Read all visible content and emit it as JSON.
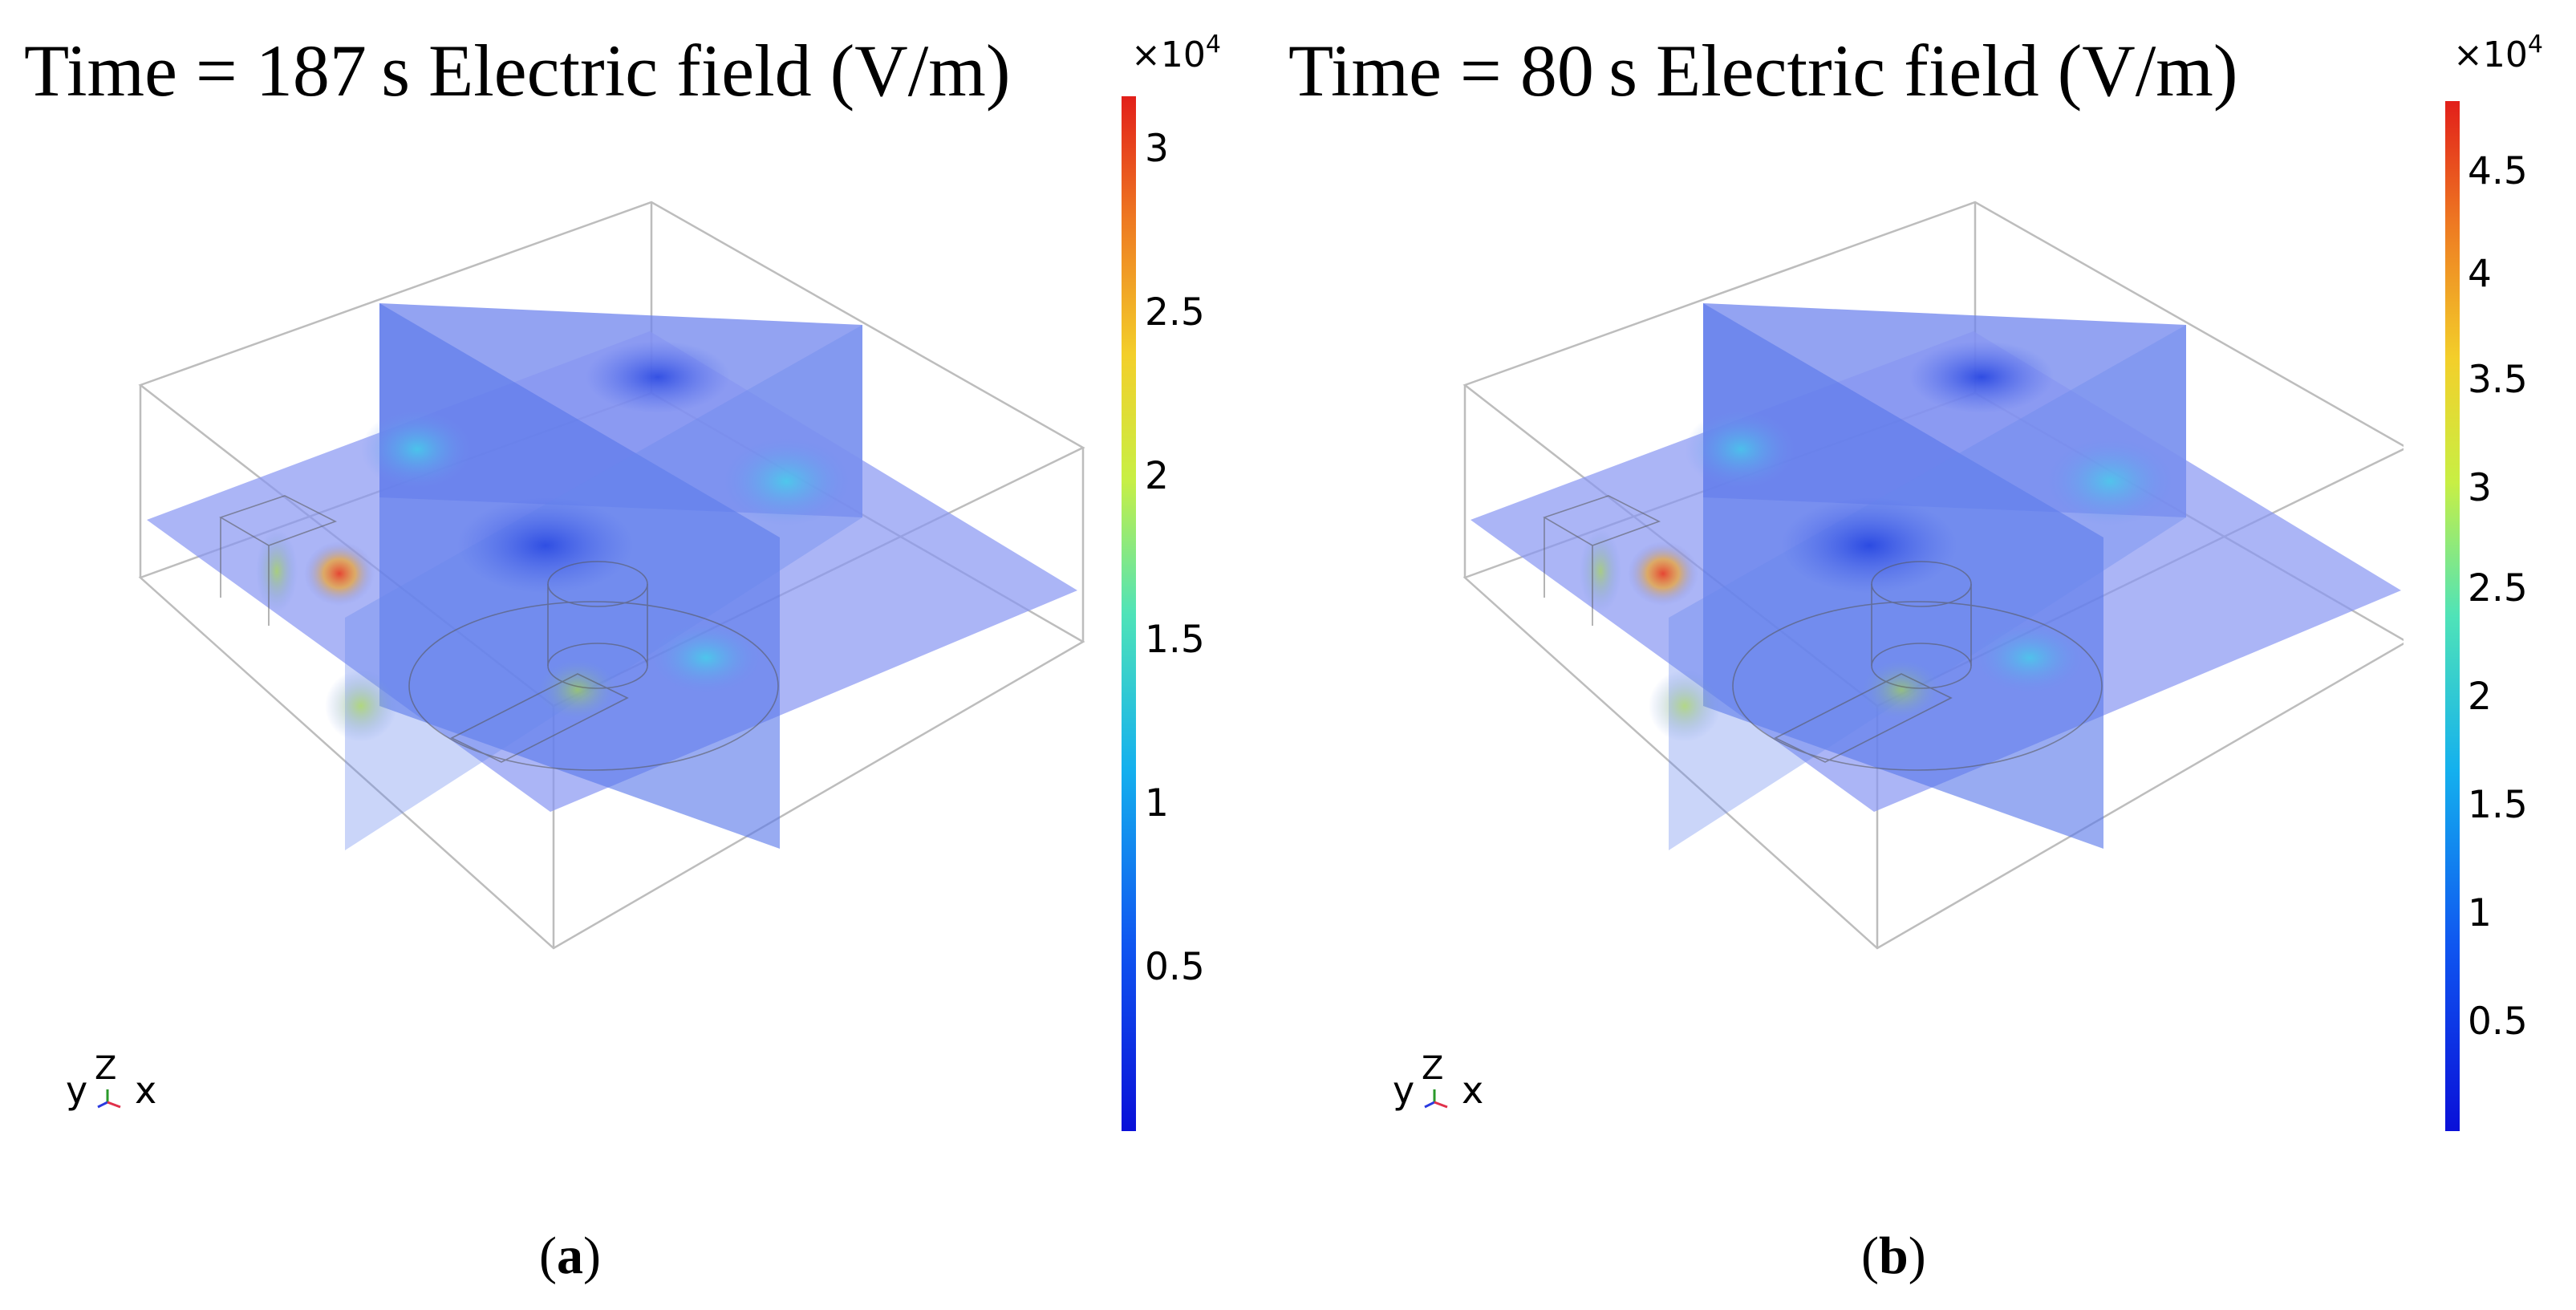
{
  "panels": [
    {
      "id": "a",
      "title_prefix": "Time = ",
      "time_value": "187",
      "time_unit": "s",
      "quantity": "Electric field (V/m)",
      "multiplier_base": "×10",
      "multiplier_exp": "4",
      "colorbar_ticks": [
        "0.5",
        "1",
        "1.5",
        "2",
        "2.5",
        "3"
      ],
      "caption_open": "(",
      "caption_letter": "a",
      "caption_close": ")"
    },
    {
      "id": "b",
      "title_prefix": "Time = ",
      "time_value": "80",
      "time_unit": "s",
      "quantity": "Electric field (V/m)",
      "multiplier_base": "×10",
      "multiplier_exp": "4",
      "colorbar_ticks": [
        "0.5",
        "1",
        "1.5",
        "2",
        "2.5",
        "3",
        "3.5",
        "4",
        "4.5"
      ],
      "caption_open": "(",
      "caption_letter": "b",
      "caption_close": ")"
    }
  ],
  "triad": {
    "y": "y",
    "z": "Z",
    "x": "x"
  },
  "colors": {
    "slice": "#7b8cf0",
    "hot": "#e8402a",
    "low": "#1f2fd8",
    "edge": "#b8b8b8"
  }
}
